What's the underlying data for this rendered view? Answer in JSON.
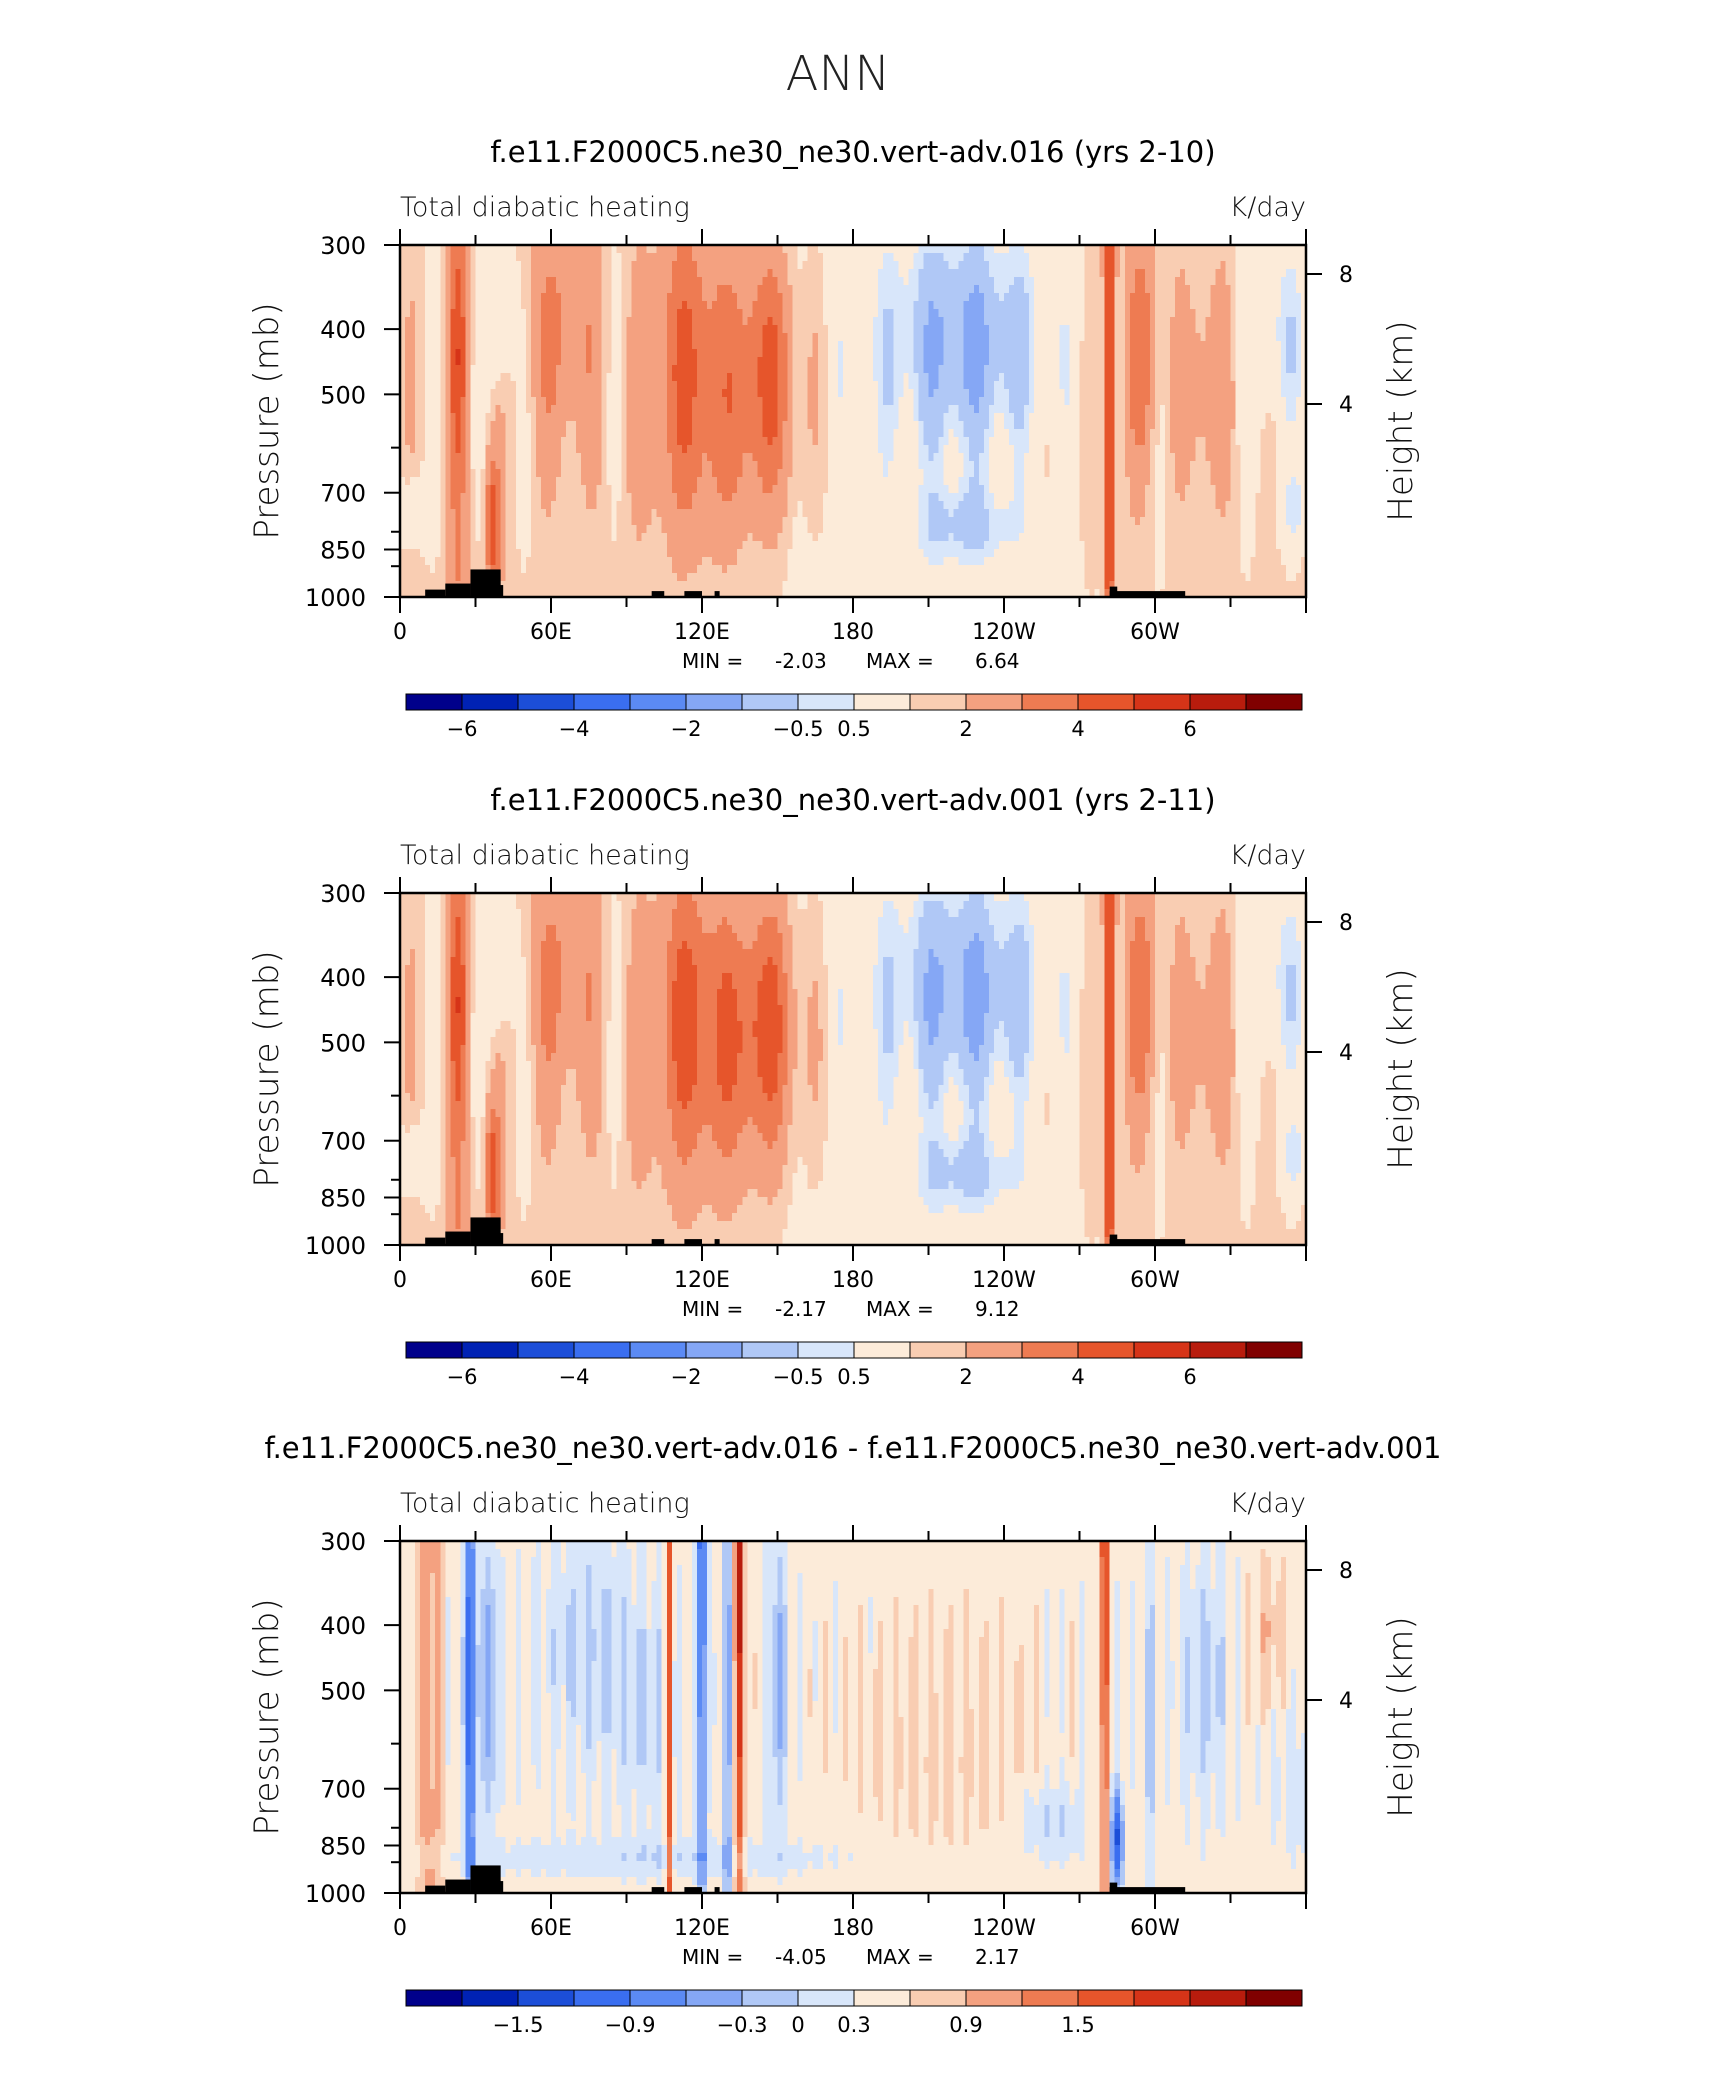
{
  "figure": {
    "title": "ANN"
  },
  "chart_data": [
    {
      "type": "heatmap",
      "title": "f.e11.F2000C5.ne30_ne30.vert-adv.016 (yrs 2-10)",
      "left_label": "Total diabatic heating",
      "right_label": "K/day",
      "ylabel": "Pressure (mb)",
      "ylabel_right": "Height (km)",
      "x_ticks": [
        "0",
        "60E",
        "120E",
        "180",
        "120W",
        "60W"
      ],
      "y_ticks": [
        "300",
        "400",
        "500",
        "700",
        "850",
        "1000"
      ],
      "y_right_ticks": [
        "8",
        "4"
      ],
      "xlim": [
        0,
        360
      ],
      "ylim": [
        1000,
        300
      ],
      "min_label": "MIN =",
      "min_value": "-2.03",
      "max_label": "MAX =",
      "max_value": "6.64",
      "colorbar": {
        "labels": [
          "−6",
          "−4",
          "−2",
          "−0.5",
          "0.5",
          "2",
          "4",
          "6"
        ],
        "levels": [
          -7,
          -6,
          -5,
          -4,
          -3,
          -2,
          -1,
          -0.5,
          0.5,
          1,
          2,
          3,
          4,
          5,
          6,
          7
        ],
        "colors": [
          "#00008b",
          "#0022b4",
          "#1c4ed8",
          "#3a6ef0",
          "#5b8af4",
          "#85a7f5",
          "#b0c8f6",
          "#d8e6fa",
          "#fcebd9",
          "#f9cdb2",
          "#f4a180",
          "#ee7b52",
          "#e6552b",
          "#d63418",
          "#b81c0d",
          "#800000"
        ]
      },
      "colors": {
        "strong_heating": "#b81c0d",
        "strong_cooling": "#3a6ef0"
      }
    },
    {
      "type": "heatmap",
      "title": "f.e11.F2000C5.ne30_ne30.vert-adv.001 (yrs 2-11)",
      "left_label": "Total diabatic heating",
      "right_label": "K/day",
      "ylabel": "Pressure (mb)",
      "ylabel_right": "Height (km)",
      "x_ticks": [
        "0",
        "60E",
        "120E",
        "180",
        "120W",
        "60W"
      ],
      "y_ticks": [
        "300",
        "400",
        "500",
        "700",
        "850",
        "1000"
      ],
      "y_right_ticks": [
        "8",
        "4"
      ],
      "xlim": [
        0,
        360
      ],
      "ylim": [
        1000,
        300
      ],
      "min_label": "MIN =",
      "min_value": "-2.17",
      "max_label": "MAX =",
      "max_value": "9.12",
      "colorbar": {
        "labels": [
          "−6",
          "−4",
          "−2",
          "−0.5",
          "0.5",
          "2",
          "4",
          "6"
        ],
        "levels": [
          -7,
          -6,
          -5,
          -4,
          -3,
          -2,
          -1,
          -0.5,
          0.5,
          1,
          2,
          3,
          4,
          5,
          6,
          7
        ],
        "colors": [
          "#00008b",
          "#0022b4",
          "#1c4ed8",
          "#3a6ef0",
          "#5b8af4",
          "#85a7f5",
          "#b0c8f6",
          "#d8e6fa",
          "#fcebd9",
          "#f9cdb2",
          "#f4a180",
          "#ee7b52",
          "#e6552b",
          "#d63418",
          "#b81c0d",
          "#800000"
        ]
      }
    },
    {
      "type": "heatmap",
      "title": "f.e11.F2000C5.ne30_ne30.vert-adv.016 - f.e11.F2000C5.ne30_ne30.vert-adv.001",
      "left_label": "Total diabatic heating",
      "right_label": "K/day",
      "ylabel": "Pressure (mb)",
      "ylabel_right": "Height (km)",
      "x_ticks": [
        "0",
        "60E",
        "120E",
        "180",
        "120W",
        "60W"
      ],
      "y_ticks": [
        "300",
        "400",
        "500",
        "700",
        "850",
        "1000"
      ],
      "y_right_ticks": [
        "8",
        "4"
      ],
      "xlim": [
        0,
        360
      ],
      "ylim": [
        1000,
        300
      ],
      "min_label": "MIN =",
      "min_value": "-4.05",
      "max_label": "MAX =",
      "max_value": "2.17",
      "colorbar": {
        "labels": [
          "−1.5",
          "−0.9",
          "−0.3",
          "0",
          "0.3",
          "0.9",
          "1.5"
        ],
        "levels": [
          -2.1,
          -1.8,
          -1.5,
          -1.2,
          -0.9,
          -0.6,
          -0.3,
          0,
          0.3,
          0.6,
          0.9,
          1.2,
          1.5,
          1.8,
          2.1
        ],
        "colors": [
          "#00008b",
          "#0022b4",
          "#1c4ed8",
          "#3a6ef0",
          "#5b8af4",
          "#85a7f5",
          "#b0c8f6",
          "#d8e6fa",
          "#fcebd9",
          "#f9cdb2",
          "#f4a180",
          "#ee7b52",
          "#e6552b",
          "#d63418",
          "#b81c0d",
          "#800000"
        ]
      }
    }
  ]
}
